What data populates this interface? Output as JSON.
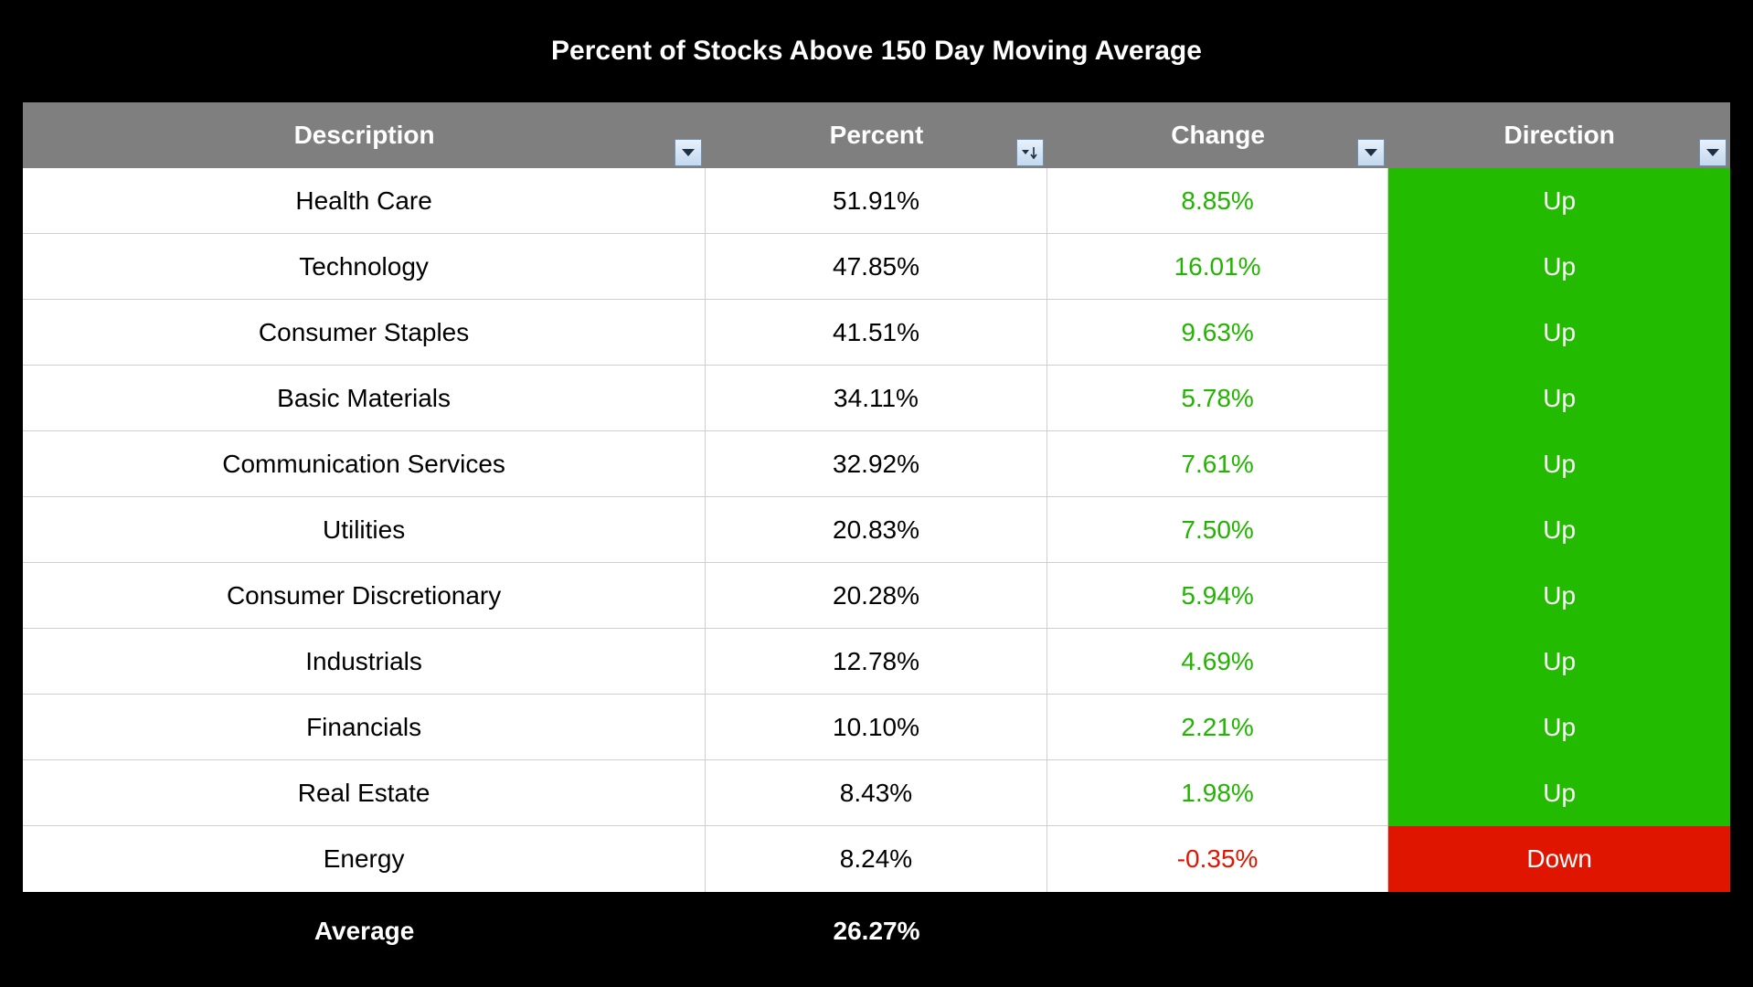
{
  "title": "Percent of Stocks Above 150 Day Moving Average",
  "colors": {
    "header_bg": "#7f7f7f",
    "up_bg": "#22bb00",
    "down_bg": "#e01500",
    "positive_text": "#22b400",
    "negative_text": "#e11500"
  },
  "columns": [
    {
      "label": "Description",
      "filter_icon": "filter-dropdown-icon"
    },
    {
      "label": "Percent",
      "filter_icon": "sort-descending-icon"
    },
    {
      "label": "Change",
      "filter_icon": "filter-dropdown-icon"
    },
    {
      "label": "Direction",
      "filter_icon": "filter-dropdown-icon"
    }
  ],
  "rows": [
    {
      "description": "Health Care",
      "percent": "51.91%",
      "change": "8.85%",
      "direction": "Up"
    },
    {
      "description": "Technology",
      "percent": "47.85%",
      "change": "16.01%",
      "direction": "Up"
    },
    {
      "description": "Consumer Staples",
      "percent": "41.51%",
      "change": "9.63%",
      "direction": "Up"
    },
    {
      "description": "Basic Materials",
      "percent": "34.11%",
      "change": "5.78%",
      "direction": "Up"
    },
    {
      "description": "Communication Services",
      "percent": "32.92%",
      "change": "7.61%",
      "direction": "Up"
    },
    {
      "description": "Utilities",
      "percent": "20.83%",
      "change": "7.50%",
      "direction": "Up"
    },
    {
      "description": "Consumer Discretionary",
      "percent": "20.28%",
      "change": "5.94%",
      "direction": "Up"
    },
    {
      "description": "Industrials",
      "percent": "12.78%",
      "change": "4.69%",
      "direction": "Up"
    },
    {
      "description": "Financials",
      "percent": "10.10%",
      "change": "2.21%",
      "direction": "Up"
    },
    {
      "description": "Real Estate",
      "percent": "8.43%",
      "change": "1.98%",
      "direction": "Up"
    },
    {
      "description": "Energy",
      "percent": "8.24%",
      "change": "-0.35%",
      "direction": "Down"
    }
  ],
  "footer": {
    "label": "Average",
    "percent": "26.27%"
  }
}
